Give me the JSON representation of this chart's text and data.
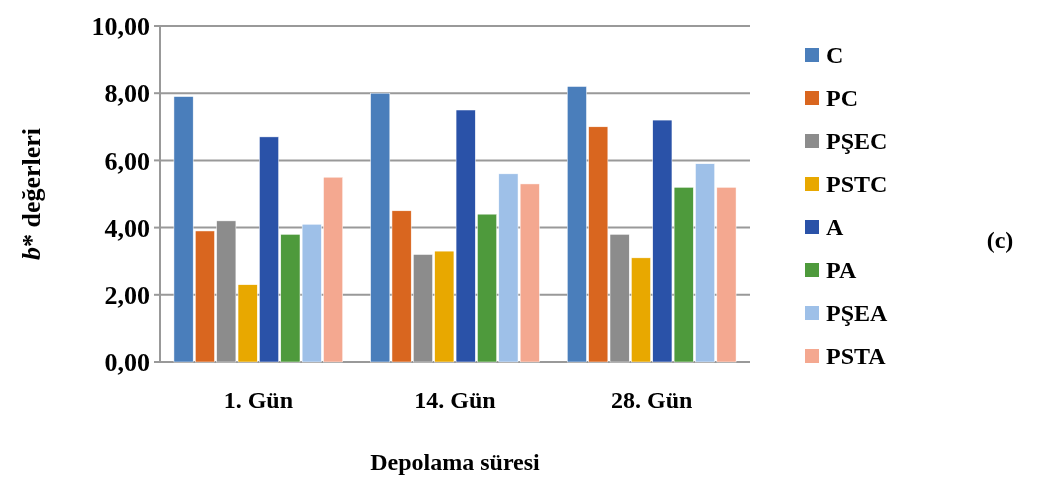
{
  "chart_data": {
    "type": "bar",
    "xlabel": "Depolama süresi",
    "ylabel": "b* değerleri",
    "categories": [
      "1. Gün",
      "14. Gün",
      "28. Gün"
    ],
    "series": [
      {
        "name": "C",
        "color": "#4a7ebb",
        "values": [
          7.9,
          8.0,
          8.2
        ]
      },
      {
        "name": "PC",
        "color": "#d9661f",
        "values": [
          3.9,
          4.5,
          7.0
        ]
      },
      {
        "name": "PŞEC",
        "color": "#8c8c8c",
        "values": [
          4.2,
          3.2,
          3.8
        ]
      },
      {
        "name": "PSTC",
        "color": "#e8a800",
        "values": [
          2.3,
          3.3,
          3.1
        ]
      },
      {
        "name": "A",
        "color": "#2a52a8",
        "values": [
          6.7,
          7.5,
          7.2
        ]
      },
      {
        "name": "PA",
        "color": "#4e9a3c",
        "values": [
          3.8,
          4.4,
          5.2
        ]
      },
      {
        "name": "PŞEA",
        "color": "#9ec0e8",
        "values": [
          4.1,
          5.6,
          5.9
        ]
      },
      {
        "name": "PSTA",
        "color": "#f4a890",
        "values": [
          5.5,
          5.3,
          5.2
        ]
      }
    ],
    "ylim": [
      0,
      10
    ],
    "yticks": [
      {
        "value": 0,
        "label": "0,00"
      },
      {
        "value": 2,
        "label": "2,00"
      },
      {
        "value": 4,
        "label": "4,00"
      },
      {
        "value": 6,
        "label": "6,00"
      },
      {
        "value": 8,
        "label": "8,00"
      },
      {
        "value": 10,
        "label": "10,00"
      }
    ],
    "grid": "y",
    "legend": "right",
    "annotations": [
      "(c)"
    ]
  }
}
